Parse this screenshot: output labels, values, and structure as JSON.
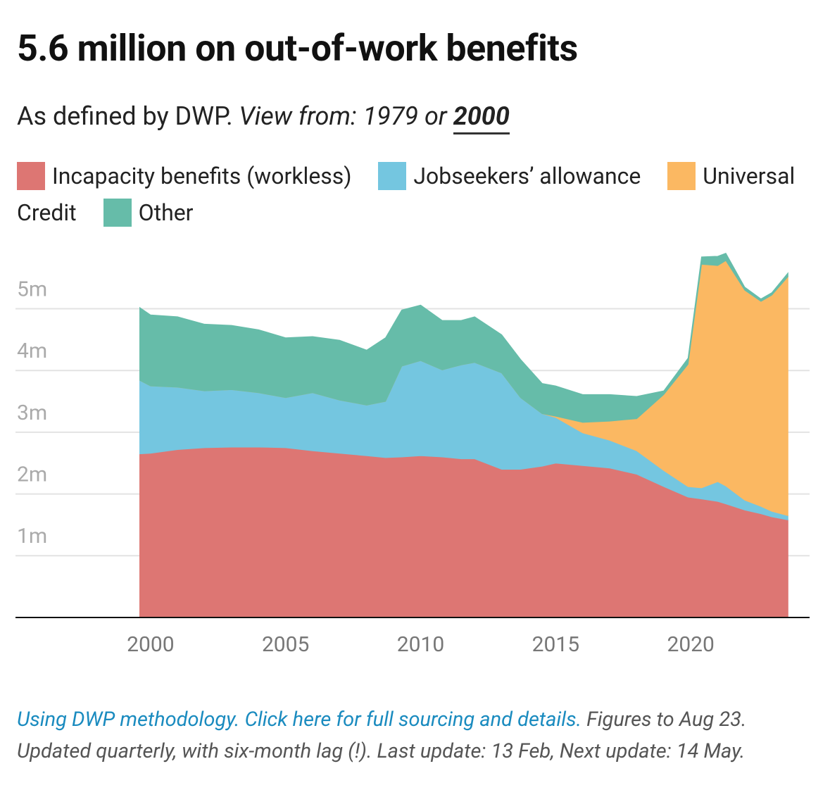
{
  "chart_data": {
    "type": "stacked_area",
    "title": "5.6 million on out-of-work benefits",
    "subtitle": {
      "text": "As defined by DWP.",
      "view_label": "View from:",
      "options": [
        "1979",
        "2000"
      ],
      "or": "or"
    },
    "x": [
      1999.6,
      2000,
      2001,
      2002,
      2003,
      2004,
      2005,
      2006,
      2007,
      2008,
      2008.7,
      2009.3,
      2010,
      2010.8,
      2011.5,
      2012,
      2013,
      2013.7,
      2014.5,
      2015,
      2016,
      2017,
      2018,
      2019,
      2019.9,
      2020.4,
      2021,
      2021.3,
      2022,
      2022.6,
      2023,
      2023.6
    ],
    "series": [
      {
        "name": "Incapacity benefits (workless)",
        "color": "#dd7673",
        "values": [
          2.65,
          2.66,
          2.72,
          2.75,
          2.76,
          2.76,
          2.75,
          2.7,
          2.66,
          2.62,
          2.59,
          2.6,
          2.62,
          2.6,
          2.57,
          2.57,
          2.4,
          2.4,
          2.45,
          2.5,
          2.46,
          2.42,
          2.32,
          2.12,
          1.95,
          1.92,
          1.88,
          1.84,
          1.74,
          1.68,
          1.63,
          1.58
        ]
      },
      {
        "name": "Jobseekers’ allowance",
        "color": "#74c6e0",
        "values": [
          1.19,
          1.09,
          1.01,
          0.92,
          0.93,
          0.88,
          0.81,
          0.94,
          0.86,
          0.82,
          0.91,
          1.47,
          1.54,
          1.41,
          1.52,
          1.56,
          1.56,
          1.16,
          0.85,
          0.74,
          0.53,
          0.45,
          0.38,
          0.26,
          0.17,
          0.18,
          0.32,
          0.29,
          0.16,
          0.12,
          0.09,
          0.07
        ]
      },
      {
        "name": "Universal Credit",
        "color": "#fbb862",
        "values": [
          0,
          0,
          0,
          0,
          0,
          0,
          0,
          0,
          0,
          0,
          0,
          0,
          0,
          0,
          0,
          0,
          0,
          0,
          0,
          0.02,
          0.17,
          0.31,
          0.52,
          1.23,
          1.98,
          3.62,
          3.5,
          3.65,
          3.4,
          3.32,
          3.5,
          3.87
        ]
      },
      {
        "name": "Other",
        "color": "#66bca9",
        "values": [
          1.18,
          1.15,
          1.14,
          1.08,
          1.04,
          1.02,
          0.97,
          0.91,
          0.97,
          0.89,
          1.03,
          0.91,
          0.9,
          0.8,
          0.72,
          0.74,
          0.62,
          0.62,
          0.49,
          0.49,
          0.45,
          0.43,
          0.36,
          0.06,
          0.1,
          0.12,
          0.15,
          0.12,
          0.05,
          0.04,
          0.04,
          0.06
        ]
      }
    ],
    "xlim": [
      1995,
      2024.4
    ],
    "xticks": [
      2000,
      2005,
      2010,
      2015,
      2020
    ],
    "ylim": [
      0,
      6
    ],
    "yticks": [
      {
        "value": 1,
        "label": "1m"
      },
      {
        "value": 2,
        "label": "2m"
      },
      {
        "value": 3,
        "label": "3m"
      },
      {
        "value": 4,
        "label": "4m"
      },
      {
        "value": 5,
        "label": "5m"
      }
    ],
    "grid": true,
    "footer": {
      "link": "Using DWP methodology. Click here for full sourcing and details.",
      "note": "Figures to Aug 23. Updated quarterly, with six-month lag (!). Last update: 13 Feb, Next update: 14 May."
    }
  }
}
